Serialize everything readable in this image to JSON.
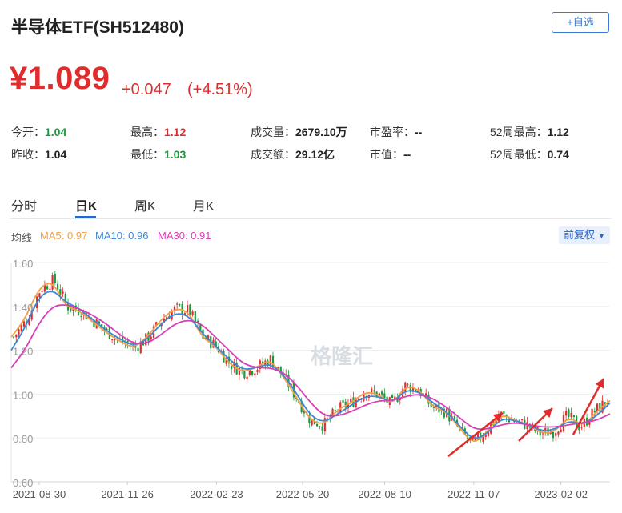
{
  "header": {
    "title": "半导体ETF(SH512480)",
    "watch_label": "+自选",
    "price": "¥1.089",
    "change": "+0.047",
    "change_pct": "(+4.51%)"
  },
  "stats": {
    "open_label": "今开：",
    "open": "1.04",
    "prev_label": "昨收：",
    "prev": "1.04",
    "high_label": "最高：",
    "high": "1.12",
    "low_label": "最低：",
    "low": "1.03",
    "volume_label": "成交量：",
    "volume": "2679.10万",
    "turnover_label": "成交额：",
    "turnover": "29.12亿",
    "pe_label": "市盈率：",
    "pe": "--",
    "mcap_label": "市值：",
    "mcap": "--",
    "w52high_label": "52周最高：",
    "w52high": "1.12",
    "w52low_label": "52周最低：",
    "w52low": "0.74"
  },
  "tabs": [
    "分时",
    "日K",
    "周K",
    "月K"
  ],
  "active_tab": "日K",
  "legend": {
    "label": "均线",
    "ma5": "MA5: 0.97",
    "ma10": "MA10: 0.96",
    "ma30": "MA30: 0.91"
  },
  "adjust_label": "前复权",
  "watermark": "格隆汇",
  "colors": {
    "up": "#e02c2c",
    "down": "#1a9a3a",
    "ma5": "#f0a04b",
    "ma10": "#3f86d6",
    "ma30": "#d63fb5",
    "accent": "#2a66d0",
    "annotation_arrow": "#e02c2c"
  },
  "chart_data": {
    "type": "candlestick",
    "title": "",
    "ylim": [
      0.6,
      1.6
    ],
    "yticks": [
      "1.60",
      "1.40",
      "1.20",
      "1.00",
      "0.80",
      "0.60"
    ],
    "xticks": [
      "2021-08-30",
      "2021-11-26",
      "2022-02-23",
      "2022-05-20",
      "2022-08-10",
      "2022-11-07",
      "2023-02-02"
    ],
    "x_range": [
      "2021-08-02",
      "2023-03-23"
    ],
    "grid": true,
    "series": [
      {
        "name": "MA5",
        "values": [
          1.26,
          1.34,
          1.48,
          1.52,
          1.4,
          1.38,
          1.33,
          1.28,
          1.24,
          1.21,
          1.26,
          1.34,
          1.39,
          1.38,
          1.26,
          1.22,
          1.14,
          1.1,
          1.12,
          1.16,
          1.08,
          0.98,
          0.88,
          0.86,
          0.93,
          0.96,
          1.01,
          1.0,
          0.95,
          1.04,
          1.02,
          0.94,
          0.92,
          0.84,
          0.77,
          0.83,
          0.91,
          0.88,
          0.86,
          0.82,
          0.83,
          0.9,
          0.85,
          0.92,
          0.97
        ]
      },
      {
        "name": "MA10",
        "values": [
          1.2,
          1.3,
          1.44,
          1.48,
          1.42,
          1.39,
          1.34,
          1.29,
          1.25,
          1.22,
          1.25,
          1.32,
          1.37,
          1.36,
          1.28,
          1.22,
          1.16,
          1.11,
          1.12,
          1.14,
          1.09,
          1.0,
          0.9,
          0.87,
          0.91,
          0.95,
          0.99,
          0.99,
          0.96,
          1.02,
          1.01,
          0.96,
          0.92,
          0.85,
          0.79,
          0.82,
          0.89,
          0.88,
          0.86,
          0.83,
          0.84,
          0.88,
          0.86,
          0.9,
          0.96
        ]
      },
      {
        "name": "MA30",
        "values": [
          1.12,
          1.2,
          1.32,
          1.4,
          1.41,
          1.39,
          1.36,
          1.32,
          1.27,
          1.23,
          1.23,
          1.27,
          1.32,
          1.34,
          1.32,
          1.26,
          1.2,
          1.14,
          1.12,
          1.12,
          1.1,
          1.04,
          0.96,
          0.9,
          0.9,
          0.92,
          0.95,
          0.97,
          0.97,
          0.99,
          1.0,
          0.98,
          0.94,
          0.89,
          0.84,
          0.84,
          0.86,
          0.87,
          0.86,
          0.85,
          0.85,
          0.86,
          0.87,
          0.88,
          0.91
        ]
      }
    ],
    "annotations": [
      "arrow-1",
      "arrow-2",
      "arrow-3"
    ]
  }
}
